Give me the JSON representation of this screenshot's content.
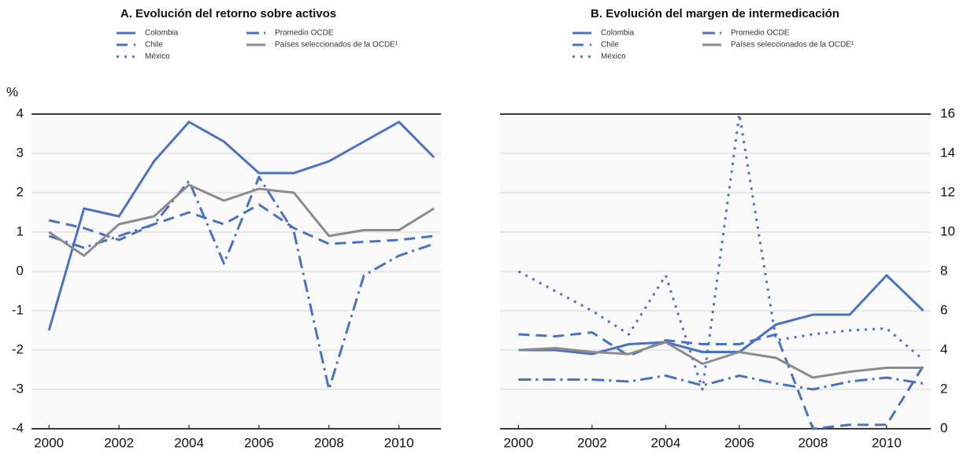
{
  "chart_data": [
    {
      "type": "line",
      "title": "A. Evolución del retorno sobre activos",
      "y_unit_label": "%",
      "x": [
        2000,
        2001,
        2002,
        2003,
        2004,
        2005,
        2006,
        2007,
        2008,
        2009,
        2010,
        2011
      ],
      "xlim": [
        1999.5,
        2011.2
      ],
      "xticks": [
        2000,
        2002,
        2004,
        2006,
        2008,
        2010
      ],
      "ylim": [
        -4,
        4
      ],
      "yticks": [
        -4,
        -3,
        -2,
        -1,
        0,
        1,
        2,
        3,
        4
      ],
      "yaxis_side": "left",
      "grid": true,
      "series": [
        {
          "name": "Colombia",
          "color": "#4a72c2",
          "dash": "solid",
          "values": [
            -1.5,
            1.6,
            1.4,
            2.8,
            3.8,
            3.3,
            2.5,
            2.5,
            2.8,
            3.3,
            3.8,
            2.9
          ]
        },
        {
          "name": "Chile",
          "color": "#4a72c2",
          "dash": "dashed",
          "values": [
            1.3,
            1.1,
            0.8,
            1.2,
            1.5,
            1.2,
            1.7,
            1.1,
            0.7,
            0.75,
            0.8,
            0.9
          ]
        },
        {
          "name": "México",
          "color": "#4a72c2",
          "dash": "dotted",
          "values": [
            null,
            null,
            null,
            null,
            null,
            null,
            null,
            null,
            null,
            null,
            null,
            null
          ]
        },
        {
          "name": "Promedio OCDE",
          "color": "#4a72c2",
          "dash": "dashdot",
          "values": [
            0.9,
            0.6,
            0.9,
            1.2,
            2.3,
            0.2,
            2.4,
            1.0,
            -3.0,
            -0.1,
            0.4,
            0.7
          ]
        },
        {
          "name": "Países seleccionados de la OCDE¹",
          "color": "#8c8c8c",
          "dash": "solid",
          "values": [
            1.0,
            0.4,
            1.2,
            1.4,
            2.2,
            1.8,
            2.1,
            2.0,
            0.9,
            1.05,
            1.05,
            1.6
          ]
        }
      ]
    },
    {
      "type": "line",
      "title": "B. Evolución del margen de intermedicación",
      "x": [
        2000,
        2001,
        2002,
        2003,
        2004,
        2005,
        2006,
        2007,
        2008,
        2009,
        2010,
        2011
      ],
      "xlim": [
        1999.5,
        2011.2
      ],
      "xticks": [
        2000,
        2002,
        2004,
        2006,
        2008,
        2010
      ],
      "ylim": [
        0,
        16
      ],
      "yticks": [
        0,
        2,
        4,
        6,
        8,
        10,
        12,
        14,
        16
      ],
      "yaxis_side": "right",
      "grid": true,
      "series": [
        {
          "name": "Colombia",
          "color": "#4a72c2",
          "dash": "solid",
          "values": [
            4.0,
            4.0,
            3.8,
            4.3,
            4.4,
            3.9,
            3.9,
            5.3,
            5.8,
            5.8,
            7.8,
            6.0
          ]
        },
        {
          "name": "Chile",
          "color": "#4a72c2",
          "dash": "dashed",
          "values": [
            4.8,
            4.7,
            4.9,
            3.7,
            4.5,
            4.3,
            4.3,
            4.8,
            0,
            0.2,
            0.2,
            3.2
          ]
        },
        {
          "name": "México",
          "color": "#4a72c2",
          "dash": "dotted",
          "values": [
            8.0,
            7.0,
            6.0,
            4.8,
            7.8,
            2.0,
            16.0,
            4.5,
            4.8,
            5.0,
            5.1,
            3.5
          ]
        },
        {
          "name": "Promedio OCDE",
          "color": "#4a72c2",
          "dash": "dashdot",
          "values": [
            2.5,
            2.5,
            2.5,
            2.4,
            2.7,
            2.2,
            2.7,
            2.3,
            2.0,
            2.4,
            2.6,
            2.3
          ]
        },
        {
          "name": "Países seleccionados de la OCDE¹",
          "color": "#8c8c8c",
          "dash": "solid",
          "values": [
            4.0,
            4.1,
            3.9,
            3.8,
            4.4,
            3.3,
            3.9,
            3.6,
            2.6,
            2.9,
            3.1,
            3.1
          ]
        }
      ]
    }
  ]
}
